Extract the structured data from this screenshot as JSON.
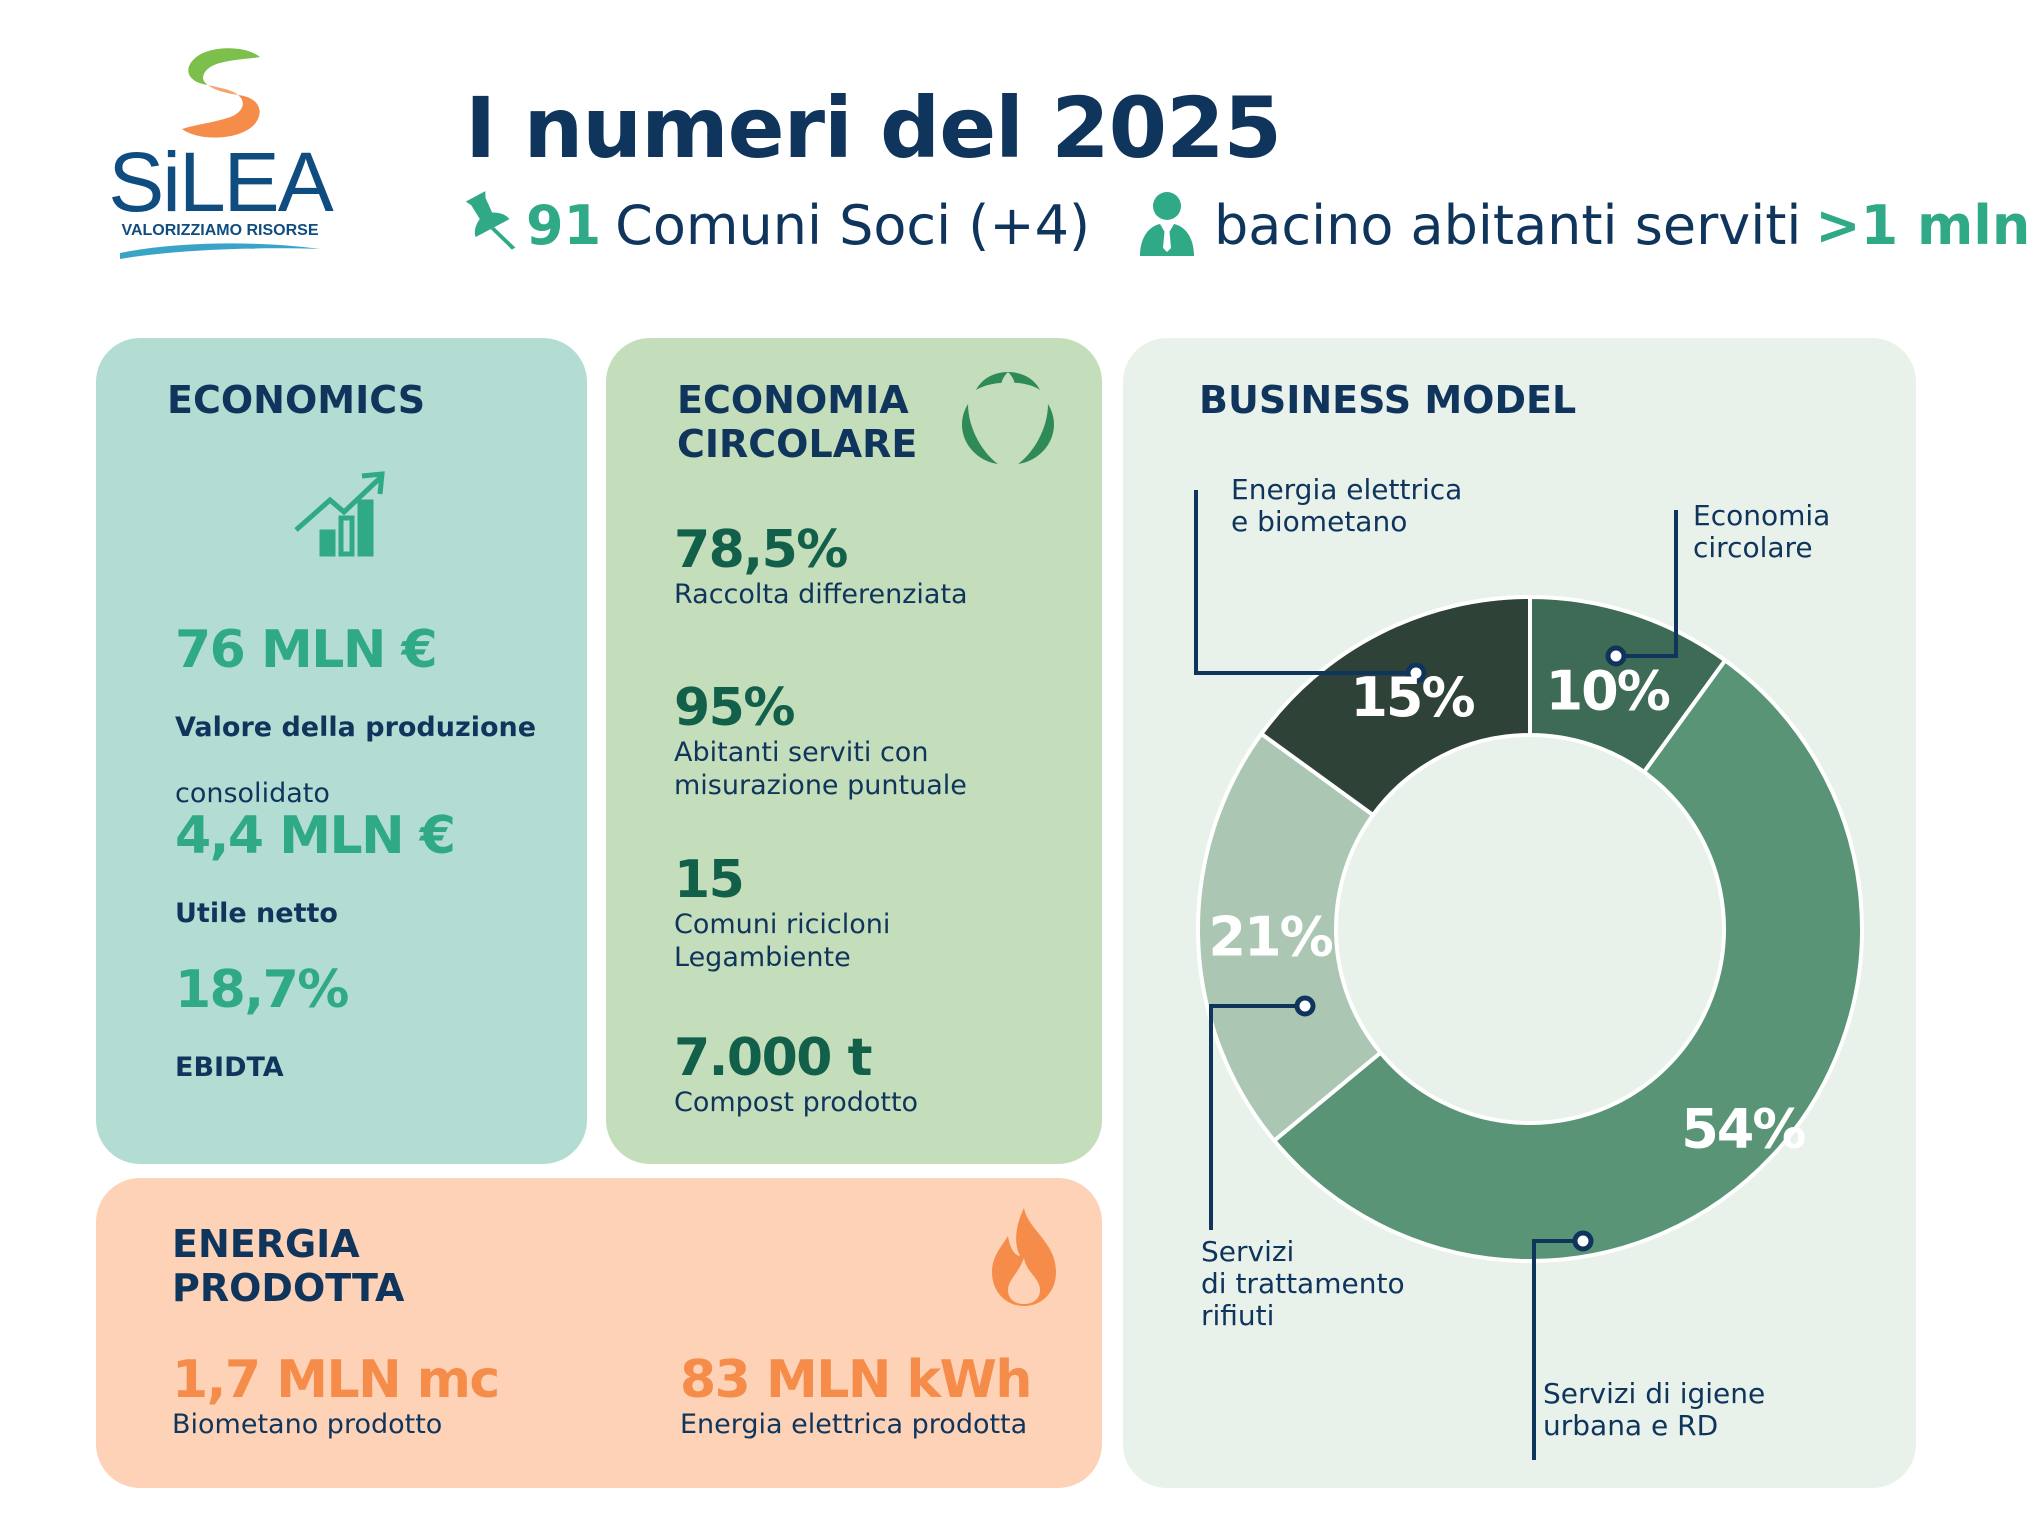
{
  "brand": {
    "name": "SiLEA",
    "tagline": "VALORIZZIAMO RISORSE",
    "colors": {
      "navy": "#0f355c",
      "teal": "#2fa986",
      "orange": "#f58c4a",
      "green": "#7cbf4a"
    }
  },
  "header": {
    "title": "I numeri del 2025",
    "comuni_value": "91",
    "comuni_text": "Comuni Soci (+4)",
    "bacino_text": "bacino abitanti serviti",
    "bacino_value": ">1 mln",
    "icons": [
      "pushpin-icon",
      "person-icon"
    ]
  },
  "economics": {
    "heading": "ECONOMICS",
    "icon": "growth-chart-icon",
    "color": "#b3ddd3",
    "kpis": [
      {
        "value": "76 MLN €",
        "label_bold": "Valore della produzione",
        "label": "consolidato"
      },
      {
        "value": "4,4 MLN €",
        "label_bold": "Utile netto",
        "label": ""
      },
      {
        "value": "18,7%",
        "label_bold": "EBIDTA",
        "label": ""
      }
    ]
  },
  "circular": {
    "heading": "ECONOMIA\nCIRCOLARE",
    "icon": "recycle-leaves-icon",
    "color": "#c4ddbb",
    "kpis": [
      {
        "value": "78,5%",
        "label": "Raccolta differenziata"
      },
      {
        "value": "95%",
        "label": "Abitanti serviti con\nmisurazione puntuale"
      },
      {
        "value": "15",
        "label": "Comuni ricicloni\nLegambiente"
      },
      {
        "value": "7.000 t",
        "label": "Compost prodotto"
      }
    ]
  },
  "energy": {
    "heading": "ENERGIA\nPRODOTTA",
    "icon": "flame-icon",
    "color": "#fdd2b6",
    "kpis": [
      {
        "value": "1,7 MLN mc",
        "label": "Biometano prodotto"
      },
      {
        "value": "83 MLN kWh",
        "label": "Energia elettrica prodotta"
      }
    ]
  },
  "business_model": {
    "heading": "BUSINESS MODEL",
    "color": "#e8f1ea"
  },
  "chart_data": {
    "type": "pie",
    "variant": "donut",
    "start": "top",
    "direction": "clockwise",
    "slices": [
      {
        "label": "Economia\ncircolare",
        "value": 10,
        "display": "10%",
        "color": "#3e6b55"
      },
      {
        "label": "Servizi di igiene\nurbana e RD",
        "value": 54,
        "display": "54%",
        "color": "#599477"
      },
      {
        "label": "Servizi\ndi trattamento\nrifiuti",
        "value": 21,
        "display": "21%",
        "color": "#abc7b3"
      },
      {
        "label": "Energia elettrica\ne biometano",
        "value": 15,
        "display": "15%",
        "color": "#2f4238"
      }
    ]
  }
}
